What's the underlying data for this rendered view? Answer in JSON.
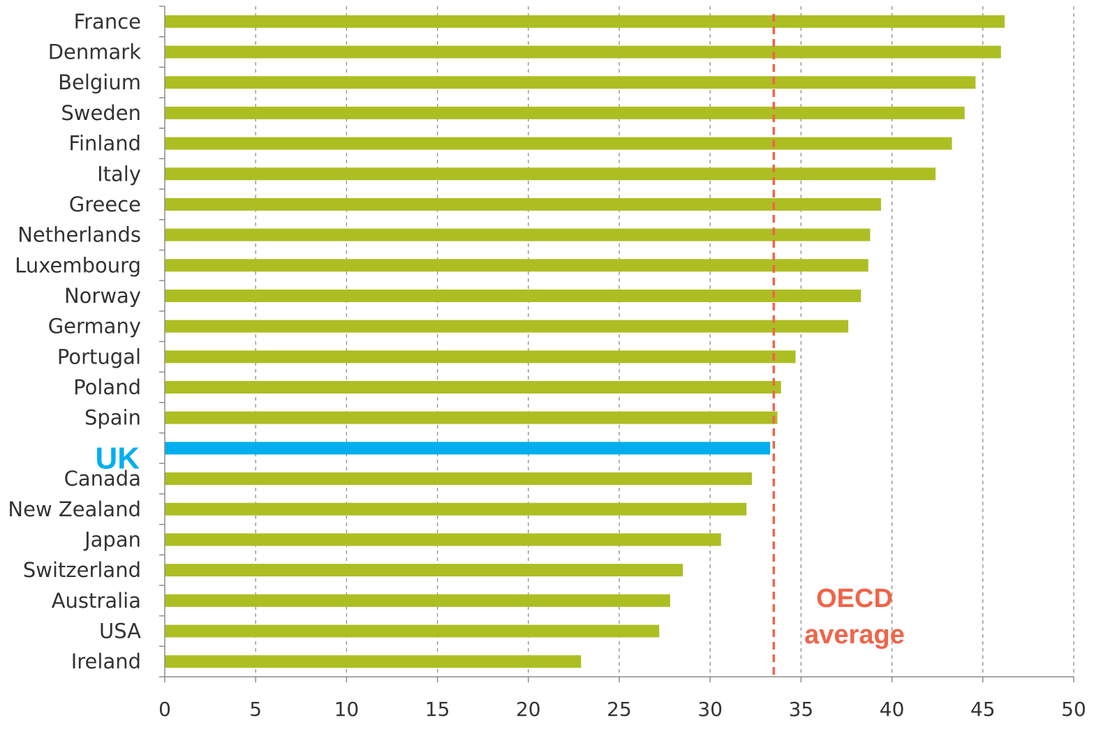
{
  "chart_data": {
    "type": "bar",
    "orientation": "horizontal",
    "categories": [
      "France",
      "Denmark",
      "Belgium",
      "Sweden",
      "Finland",
      "Italy",
      "Greece",
      "Netherlands",
      "Luxembourg",
      "Norway",
      "Germany",
      "Portugal",
      "Poland",
      "Spain",
      "UK",
      "Canada",
      "New Zealand",
      "Japan",
      "Switzerland",
      "Australia",
      "USA",
      "Ireland"
    ],
    "values": [
      46.2,
      46.0,
      44.6,
      44.0,
      43.3,
      42.4,
      39.4,
      38.8,
      38.7,
      38.3,
      37.6,
      34.7,
      33.9,
      33.7,
      33.3,
      32.3,
      32.0,
      30.6,
      28.5,
      27.8,
      27.2,
      22.9
    ],
    "highlight_category": "UK",
    "xlim": [
      0,
      50
    ],
    "xticks": [
      0,
      5,
      10,
      15,
      20,
      25,
      30,
      35,
      40,
      45,
      50
    ],
    "grid": "vertical dashed",
    "reference_line": {
      "value": 33.5,
      "label_line1": "OECD",
      "label_line2": "average"
    },
    "colors": {
      "bar": "#adbe23",
      "highlight": "#00aeef",
      "reference": "#f06449",
      "grid": "#8c8c8c",
      "axis": "#8c8c8c"
    },
    "title": "",
    "xlabel": "",
    "ylabel": ""
  }
}
